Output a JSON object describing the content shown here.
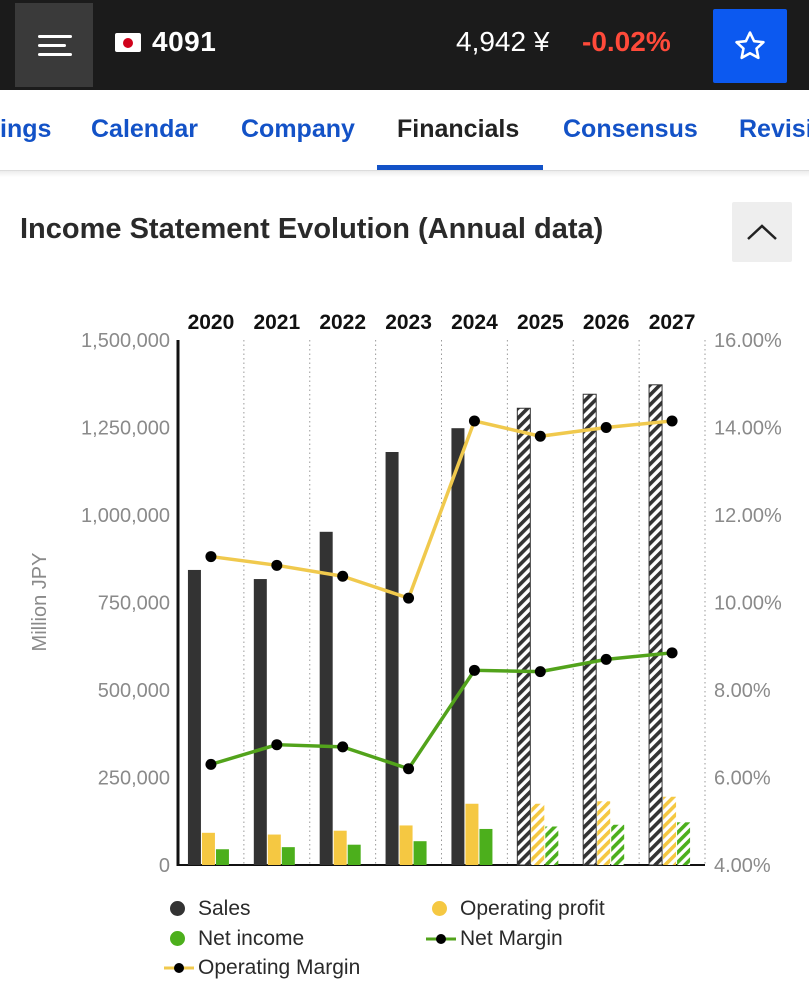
{
  "header": {
    "menu_icon": "hamburger-menu-icon",
    "flag_icon": "japan-flag-icon",
    "ticker": "4091",
    "price": "4,942 ¥",
    "change": "-0.02%",
    "change_color": "#ff4a3a",
    "favorite_icon": "star-icon",
    "accent_color": "#0c59f0"
  },
  "tabs": [
    {
      "label": "ings",
      "active": false
    },
    {
      "label": "Calendar",
      "active": false
    },
    {
      "label": "Company",
      "active": false
    },
    {
      "label": "Financials",
      "active": true
    },
    {
      "label": "Consensus",
      "active": false
    },
    {
      "label": "Revisi",
      "active": false
    }
  ],
  "section": {
    "title": "Income Statement Evolution (Annual data)",
    "collapse_icon": "chevron-up-icon"
  },
  "chart_data": {
    "type": "bar",
    "categories": [
      "2020",
      "2021",
      "2022",
      "2023",
      "2024",
      "2025",
      "2026",
      "2027"
    ],
    "estimate_from_index": 5,
    "ylabel": "Million JPY",
    "ylim": [
      0,
      1500000
    ],
    "y_ticks": [
      "0",
      "250,000",
      "500,000",
      "750,000",
      "1,000,000",
      "1,250,000",
      "1,500,000"
    ],
    "y2lim": [
      4,
      16
    ],
    "y2_ticks": [
      "4.00%",
      "6.00%",
      "8.00%",
      "10.00%",
      "12.00%",
      "14.00%",
      "16.00%"
    ],
    "grid": "vertical dotted",
    "legend_position": "bottom",
    "series": [
      {
        "name": "Sales",
        "kind": "bar",
        "axis": "left",
        "color": "#333333",
        "values": [
          843000,
          817000,
          952000,
          1180000,
          1248000,
          1305000,
          1345000,
          1372000
        ]
      },
      {
        "name": "Operating profit",
        "kind": "bar",
        "axis": "left",
        "color": "#f5c842",
        "values": [
          92000,
          87000,
          98000,
          113000,
          175000,
          175000,
          182000,
          195000
        ]
      },
      {
        "name": "Net income",
        "kind": "bar",
        "axis": "left",
        "color": "#4caf1c",
        "values": [
          45000,
          51000,
          58000,
          68000,
          103000,
          110000,
          115000,
          122000
        ]
      },
      {
        "name": "Net Margin",
        "kind": "line",
        "axis": "right",
        "color": "#52a31b",
        "values": [
          6.3,
          6.75,
          6.7,
          6.2,
          8.45,
          8.42,
          8.7,
          8.85
        ]
      },
      {
        "name": "Operating Margin",
        "kind": "line",
        "axis": "right",
        "color": "#f0c94d",
        "values": [
          11.05,
          10.85,
          10.6,
          10.1,
          14.15,
          13.8,
          14.0,
          14.15
        ]
      }
    ]
  }
}
